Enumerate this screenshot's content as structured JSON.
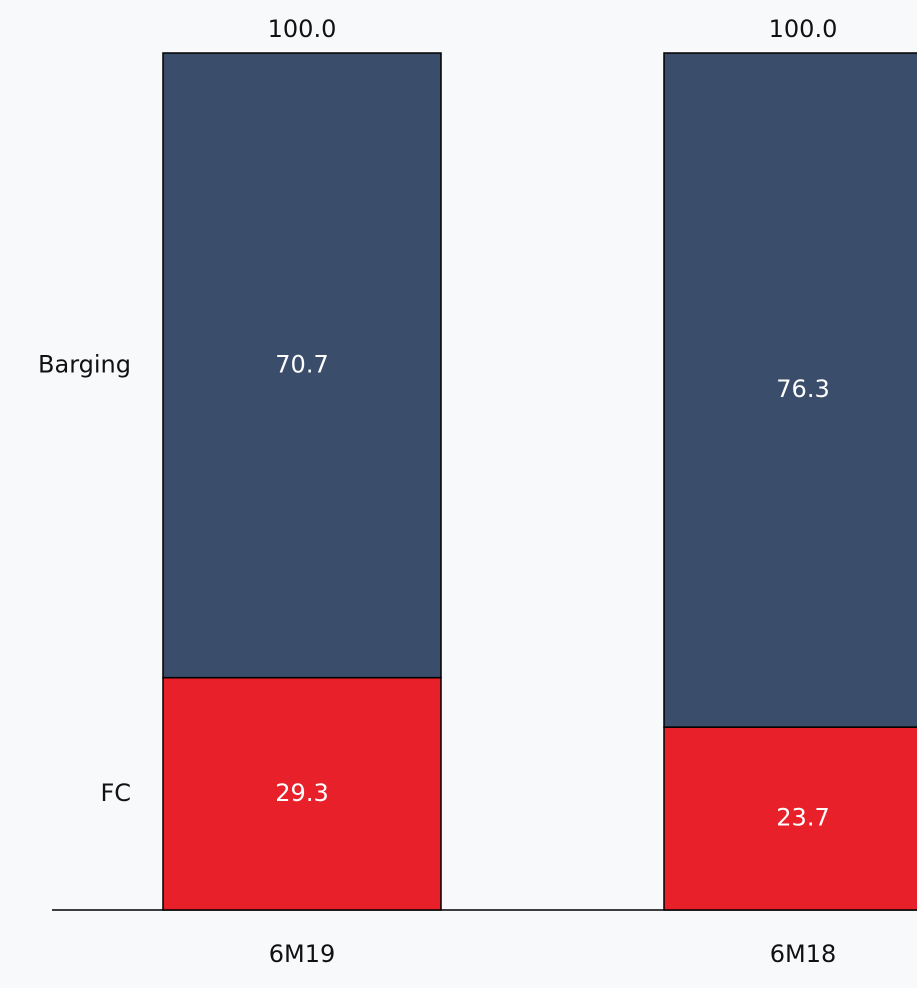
{
  "chart_data": {
    "type": "stacked_bar",
    "categories": [
      "6M19",
      "6M18"
    ],
    "series": [
      {
        "name": "FC",
        "color": "#e8202a",
        "values": [
          29.3,
          23.7
        ]
      },
      {
        "name": "Barging",
        "color": "#3a4d6b",
        "values": [
          70.7,
          76.3
        ]
      }
    ],
    "totals": [
      100,
      100
    ],
    "total_labels": [
      "100.0",
      "100.0"
    ],
    "ylim": [
      3,
      100
    ]
  }
}
